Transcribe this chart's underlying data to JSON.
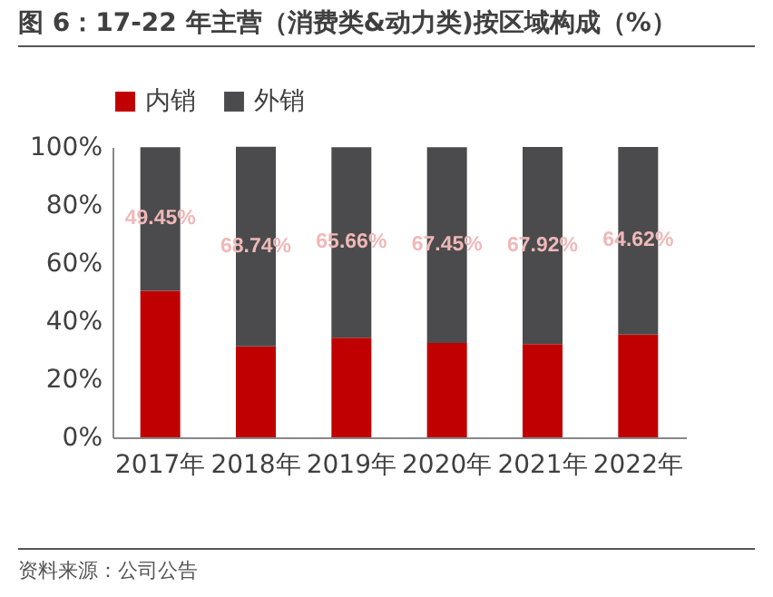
{
  "chart_data": {
    "type": "bar",
    "title": "图 6：17-22 年主营（消费类&动力类)按区域构成（%）",
    "stacked": true,
    "legend": "top",
    "grid": false,
    "categories": [
      "2017年",
      "2018年",
      "2019年",
      "2020年",
      "2021年",
      "2022年"
    ],
    "ylim": [
      0,
      100
    ],
    "yticks": [
      {
        "value": 0,
        "label": "0%"
      },
      {
        "value": 20,
        "label": "20%"
      },
      {
        "value": 40,
        "label": "40%"
      },
      {
        "value": 60,
        "label": "60%"
      },
      {
        "value": 80,
        "label": "80%"
      },
      {
        "value": 100,
        "label": "100%"
      }
    ],
    "series": [
      {
        "name": "内销",
        "color": "#c00000",
        "values": [
          50.5,
          31.3,
          34.3,
          32.5,
          32.1,
          35.4
        ]
      },
      {
        "name": "外销",
        "color": "#4b4b4d",
        "values": [
          49.45,
          68.74,
          65.66,
          67.45,
          67.92,
          64.62
        ],
        "value_labels": [
          "49.45%",
          "68.74%",
          "65.66%",
          "67.45%",
          "67.92%",
          "64.62%"
        ]
      }
    ],
    "annotations": [
      "资料来源：公司公告"
    ]
  }
}
